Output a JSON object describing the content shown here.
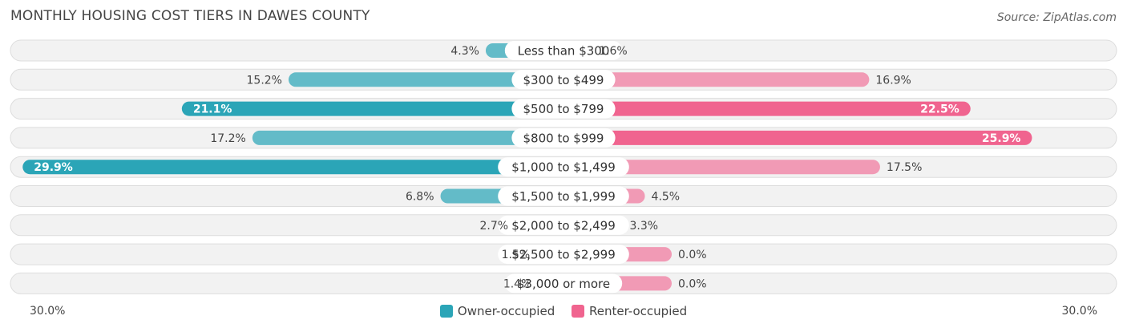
{
  "title": "MONTHLY HOUSING COST TIERS IN DAWES COUNTY",
  "source": "Source: ZipAtlas.com",
  "chart_data": {
    "type": "bar",
    "orientation": "diverging-horizontal",
    "categories": [
      "Less than $300",
      "$300 to $499",
      "$500 to $799",
      "$800 to $999",
      "$1,000 to $1,499",
      "$1,500 to $1,999",
      "$2,000 to $2,499",
      "$2,500 to $2,999",
      "$3,000 or more"
    ],
    "series": [
      {
        "name": "Owner-occupied",
        "color": "#2ba5b7",
        "values": [
          4.3,
          15.2,
          21.1,
          17.2,
          29.9,
          6.8,
          2.7,
          1.5,
          1.4
        ],
        "labels": [
          "4.3%",
          "15.2%",
          "21.1%",
          "17.2%",
          "29.9%",
          "6.8%",
          "2.7%",
          "1.5%",
          "1.4%"
        ]
      },
      {
        "name": "Renter-occupied",
        "color": "#f0648f",
        "values": [
          1.6,
          16.9,
          22.5,
          25.9,
          17.5,
          4.5,
          3.3,
          0.0,
          0.0
        ],
        "labels": [
          "1.6%",
          "16.9%",
          "22.5%",
          "25.9%",
          "17.5%",
          "4.5%",
          "3.3%",
          "0.0%",
          "0.0%"
        ]
      }
    ],
    "axis_min_label": "30.0%",
    "axis_max_label": "30.0%",
    "xlim": [
      -30,
      30
    ],
    "legend_position": "bottom-center"
  }
}
